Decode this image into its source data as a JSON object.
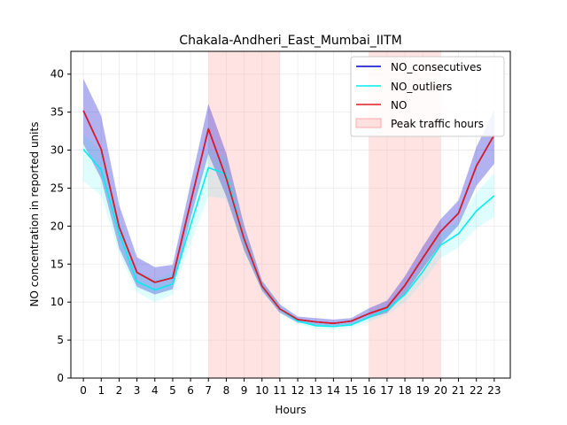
{
  "chart_data": {
    "type": "line",
    "title": "Chakala-Andheri_East_Mumbai_IITM",
    "xlabel": "Hours",
    "ylabel": "NO concentration in reported units",
    "x": [
      0,
      1,
      2,
      3,
      4,
      5,
      6,
      7,
      8,
      9,
      10,
      11,
      12,
      13,
      14,
      15,
      16,
      17,
      18,
      19,
      20,
      21,
      22,
      23
    ],
    "xlim": [
      -0.7,
      23.9
    ],
    "ylim": [
      0,
      43
    ],
    "yticks": [
      0,
      5,
      10,
      15,
      20,
      25,
      30,
      35,
      40
    ],
    "grid": true,
    "legend_position": "upper-right",
    "series": [
      {
        "name": "NO_consecutives",
        "color": "#0000cc",
        "values": [
          35.2,
          30.1,
          19.9,
          13.9,
          12.6,
          13.2,
          23.1,
          32.8,
          26.3,
          18.3,
          12.1,
          9.1,
          7.7,
          7.4,
          7.2,
          7.5,
          8.5,
          9.3,
          12.2,
          15.8,
          19.3,
          21.7,
          27.9,
          32.0
        ],
        "band_upper": [
          39.4,
          34.5,
          22.8,
          15.9,
          14.6,
          14.9,
          25.6,
          36.1,
          29.6,
          20.1,
          12.8,
          9.7,
          8.1,
          7.9,
          7.7,
          7.9,
          9.2,
          10.2,
          13.4,
          17.3,
          20.9,
          23.4,
          30.4,
          35.3
        ],
        "band_lower": [
          30.8,
          26.2,
          17.1,
          12.0,
          11.0,
          11.7,
          21.0,
          29.5,
          23.9,
          16.8,
          11.5,
          8.6,
          7.3,
          7.0,
          6.9,
          7.1,
          7.9,
          8.6,
          11.1,
          14.4,
          17.6,
          20.1,
          25.3,
          28.2
        ]
      },
      {
        "name": "NO_outliers",
        "color": "#00eeee",
        "values": [
          30.1,
          27.4,
          19.0,
          12.7,
          11.6,
          12.4,
          20.1,
          27.7,
          26.8,
          18.3,
          12.1,
          9.1,
          7.5,
          6.9,
          6.8,
          7.0,
          8.0,
          9.0,
          11.0,
          14.0,
          17.5,
          19.0,
          22.0,
          24.0
        ],
        "band_upper": [
          32.1,
          29.8,
          21.0,
          14.2,
          13.0,
          13.9,
          22.4,
          30.2,
          29.0,
          19.7,
          12.9,
          9.6,
          7.9,
          7.3,
          7.2,
          7.4,
          8.6,
          9.7,
          12.0,
          15.4,
          19.0,
          20.7,
          24.4,
          27.0
        ],
        "band_lower": [
          25.9,
          24.0,
          16.4,
          11.3,
          10.0,
          11.0,
          17.7,
          23.9,
          23.6,
          16.8,
          11.4,
          8.6,
          7.1,
          6.5,
          6.4,
          6.6,
          7.4,
          8.3,
          10.0,
          12.6,
          15.8,
          17.2,
          19.7,
          21.2
        ]
      },
      {
        "name": "NO",
        "color": "#e41a1c",
        "values": [
          35.2,
          30.1,
          19.9,
          13.9,
          12.6,
          13.2,
          23.1,
          32.8,
          26.3,
          18.3,
          12.1,
          9.1,
          7.7,
          7.4,
          7.2,
          7.5,
          8.5,
          9.3,
          12.2,
          15.8,
          19.3,
          21.7,
          27.9,
          32.0
        ]
      }
    ],
    "shaded_regions": {
      "name": "Peak traffic hours",
      "color": "#ffaaaa",
      "ranges": [
        [
          7,
          11
        ],
        [
          16,
          20
        ]
      ]
    }
  }
}
